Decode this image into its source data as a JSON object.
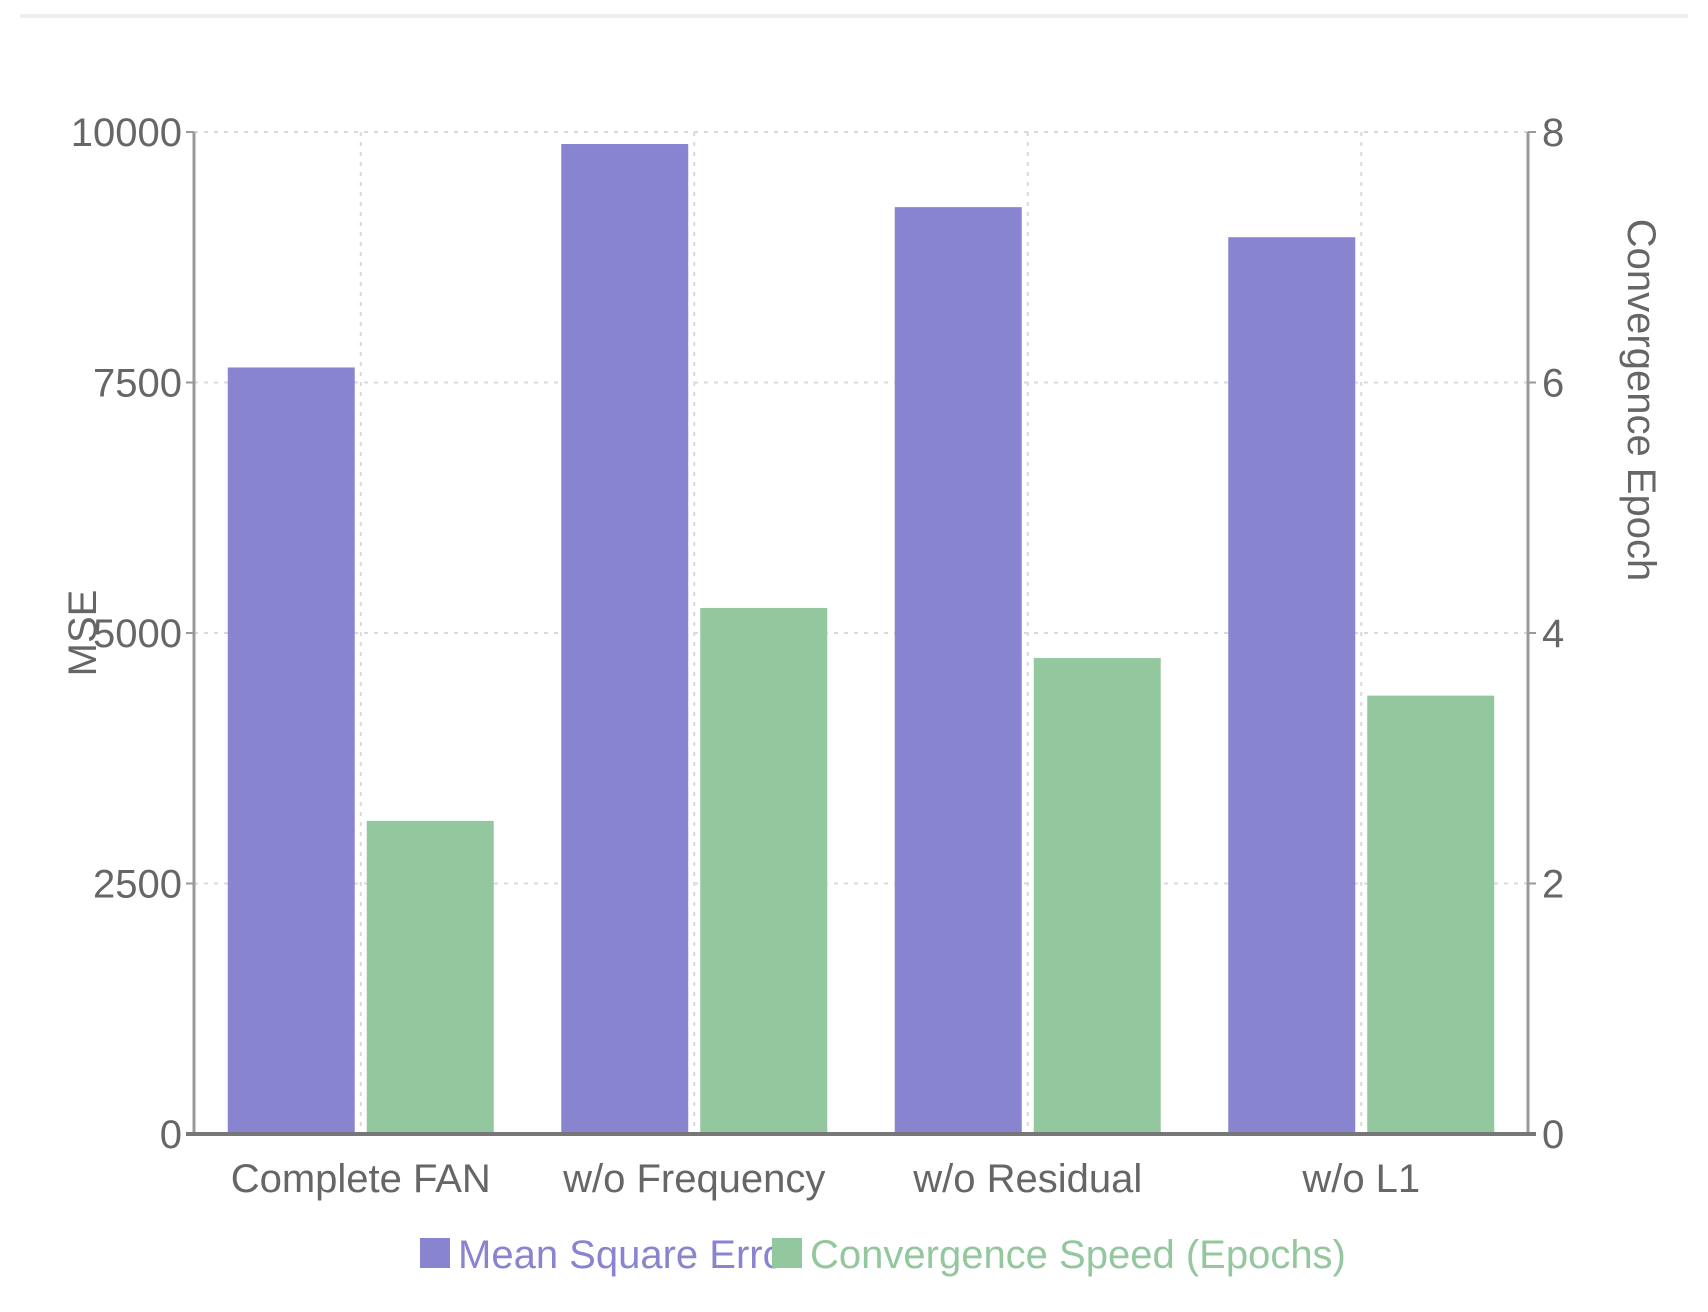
{
  "chart_data": {
    "type": "bar",
    "categories": [
      "Complete FAN",
      "w/o Frequency",
      "w/o Residual",
      "w/o L1"
    ],
    "series": [
      {
        "name": "Mean Square Error",
        "axis": "left",
        "values": [
          7650,
          9880,
          9250,
          8950
        ],
        "color": "#8884d0"
      },
      {
        "name": "Convergence Speed (Epochs)",
        "axis": "right",
        "values": [
          2.5,
          4.2,
          3.8,
          3.5
        ],
        "color": "#93c79e"
      }
    ],
    "y_left": {
      "label": "MSE",
      "ticks": [
        "0",
        "2500",
        "5000",
        "7500",
        "10000"
      ],
      "lim": [
        0,
        10000
      ]
    },
    "y_right": {
      "label": "Convergence Epoch",
      "ticks": [
        "0",
        "2",
        "4",
        "6",
        "8"
      ],
      "lim": [
        0,
        8
      ]
    },
    "grid": true,
    "legend_position": "bottom-center"
  }
}
